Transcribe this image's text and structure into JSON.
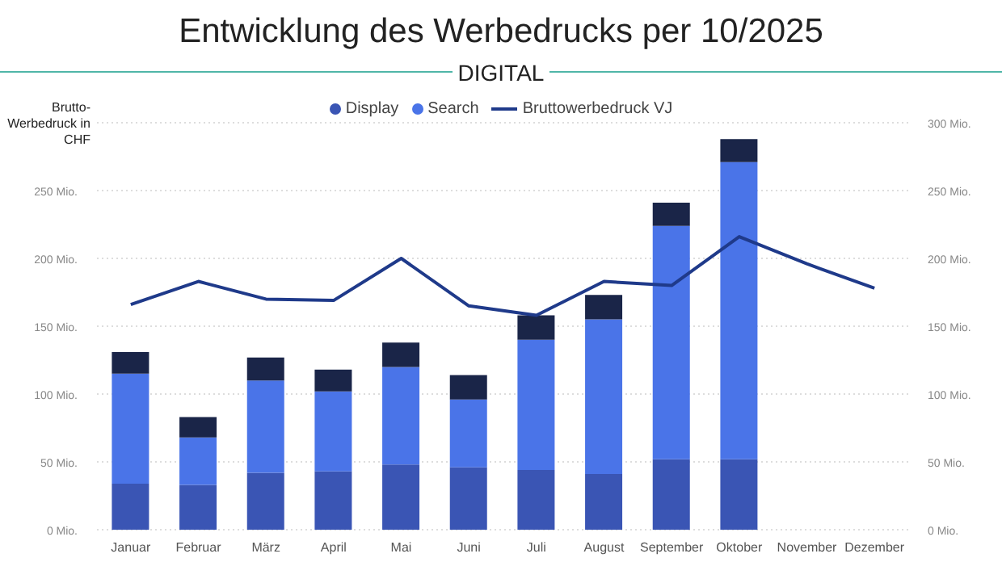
{
  "chart_data": {
    "type": "bar",
    "title": "Entwicklung des Werbedrucks per 10/2025",
    "subtitle": "DIGITAL",
    "ylabel": "Brutto-Werbedruck in CHF",
    "categories": [
      "Januar",
      "Februar",
      "März",
      "April",
      "Mai",
      "Juni",
      "Juli",
      "August",
      "September",
      "Oktober",
      "November",
      "Dezember"
    ],
    "stacked": true,
    "series": [
      {
        "name": "Display",
        "color": "#3a55b4",
        "values": [
          34,
          33,
          42,
          43,
          48,
          46,
          44,
          41,
          52,
          52,
          null,
          null
        ]
      },
      {
        "name": "Search",
        "color": "#4a74e8",
        "values": [
          81,
          35,
          68,
          59,
          72,
          50,
          96,
          114,
          172,
          219,
          null,
          null
        ]
      },
      {
        "color": "#1a2548",
        "values": [
          16,
          15,
          17,
          16,
          18,
          18,
          18,
          18,
          17,
          17,
          null,
          null
        ]
      },
      {
        "name": "Bruttowerbedruck VJ",
        "type": "line",
        "axis": "y2",
        "color": "#1f3a8a",
        "values": [
          166,
          183,
          170,
          169,
          200,
          165,
          158,
          183,
          180,
          216,
          196,
          178
        ]
      }
    ],
    "ylim": [
      0,
      300
    ],
    "yticks": [
      {
        "value": 0,
        "label": "0 Mio."
      },
      {
        "value": 50,
        "label": "50 Mio."
      },
      {
        "value": 100,
        "label": "100 Mio."
      },
      {
        "value": 150,
        "label": "150 Mio."
      },
      {
        "value": 200,
        "label": "200 Mio."
      },
      {
        "value": 250,
        "label": "250 Mio."
      }
    ],
    "y2lim": [
      0,
      300
    ],
    "y2ticks": [
      {
        "value": 0,
        "label": "0 Mio."
      },
      {
        "value": 50,
        "label": "50 Mio."
      },
      {
        "value": 100,
        "label": "100 Mio."
      },
      {
        "value": 150,
        "label": "150 Mio."
      },
      {
        "value": 200,
        "label": "200 Mio."
      },
      {
        "value": 250,
        "label": "250 Mio."
      },
      {
        "value": 300,
        "label": "300 Mio."
      }
    ],
    "grid": "y",
    "legend": "top",
    "marker": "none"
  }
}
